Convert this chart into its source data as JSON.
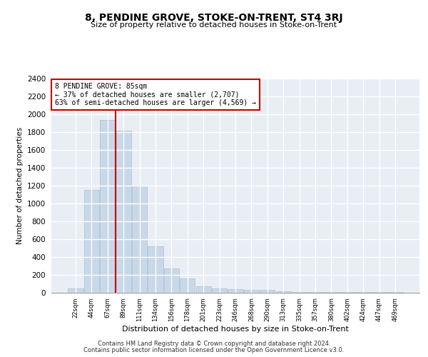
{
  "title": "8, PENDINE GROVE, STOKE-ON-TRENT, ST4 3RJ",
  "subtitle": "Size of property relative to detached houses in Stoke-on-Trent",
  "xlabel": "Distribution of detached houses by size in Stoke-on-Trent",
  "ylabel": "Number of detached properties",
  "footnote1": "Contains HM Land Registry data © Crown copyright and database right 2024.",
  "footnote2": "Contains public sector information licensed under the Open Government Licence v3.0.",
  "annotation_line1": "8 PENDINE GROVE: 85sqm",
  "annotation_line2": "← 37% of detached houses are smaller (2,707)",
  "annotation_line3": "63% of semi-detached houses are larger (4,569) →",
  "bar_color": "#c8d8e8",
  "bar_edge_color": "#a8bfcf",
  "red_line_color": "#cc0000",
  "background_color": "#e8eef4",
  "grid_color": "#ffffff",
  "categories": [
    "22sqm",
    "44sqm",
    "67sqm",
    "89sqm",
    "111sqm",
    "134sqm",
    "156sqm",
    "178sqm",
    "201sqm",
    "223sqm",
    "246sqm",
    "268sqm",
    "290sqm",
    "313sqm",
    "335sqm",
    "357sqm",
    "380sqm",
    "402sqm",
    "424sqm",
    "447sqm",
    "469sqm"
  ],
  "values": [
    50,
    1150,
    1940,
    1820,
    1200,
    520,
    270,
    160,
    75,
    45,
    40,
    35,
    30,
    15,
    10,
    10,
    5,
    10,
    5,
    5,
    5
  ],
  "red_line_index": 2.5,
  "ylim": [
    0,
    2400
  ],
  "yticks": [
    0,
    200,
    400,
    600,
    800,
    1000,
    1200,
    1400,
    1600,
    1800,
    2000,
    2200,
    2400
  ]
}
